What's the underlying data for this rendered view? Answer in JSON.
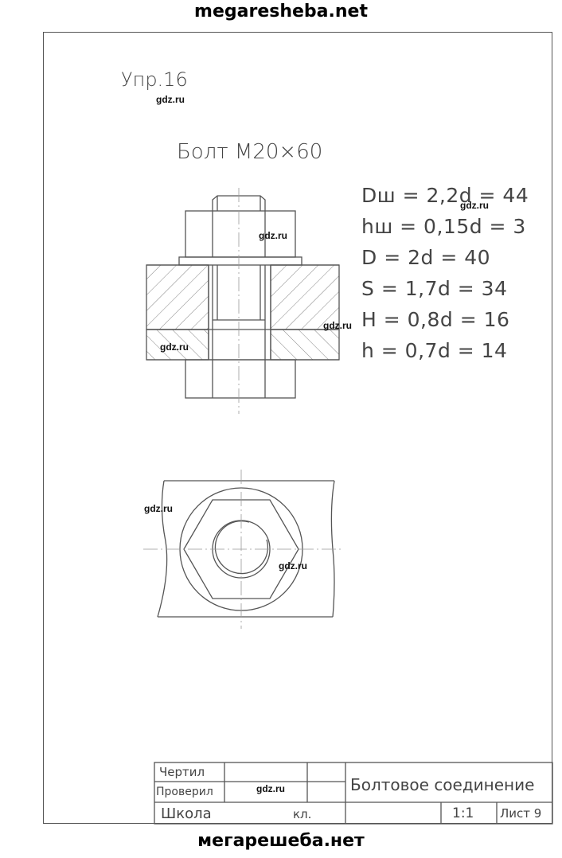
{
  "site": {
    "top_banner": "megaresheba.net",
    "bottom_banner": "мегарешеба.нет"
  },
  "sheet": {
    "exercise_label": "Упр.16",
    "bolt_title": "Болт М20×60",
    "formulas": [
      "Dш = 2,2d = 44",
      "hш = 0,15d = 3",
      "D = 2d = 40",
      "S = 1,7d = 34",
      "H = 0,8d = 16",
      "h = 0,7d = 14"
    ]
  },
  "watermarks": [
    "gdz.ru",
    "gdz.ru",
    "gdz.ru",
    "gdz.ru",
    "gdz.ru",
    "gdz.ru",
    "gdz.ru",
    "gdz.ru"
  ],
  "title_block": {
    "drew_label": "Чертил",
    "checked_label": "Проверил",
    "school_label": "Школа",
    "class_label": "кл.",
    "drawing_name": "Болтовое соединение",
    "scale": "1:1",
    "sheet_label": "Лист 9"
  }
}
